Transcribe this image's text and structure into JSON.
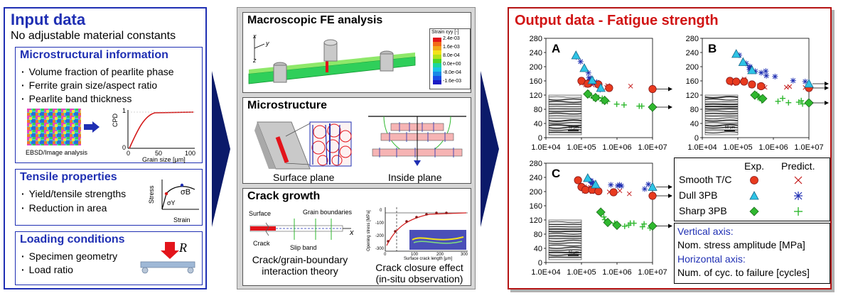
{
  "left": {
    "title": "Input data",
    "subtitle": "No adjustable material constants",
    "micro": {
      "heading": "Microstructural information",
      "items": [
        "Volume fraction of pearlite phase",
        "Ferrite grain size/aspect ratio",
        "Pearlite band thickness"
      ],
      "ebsd_caption": "EBSD/Image analysis",
      "cdf_ylabel": "CPD",
      "cdf_xlabel": "Grain size [μm]",
      "cdf_yticks": [
        "1",
        "0"
      ],
      "cdf_xticks": [
        "0",
        "50",
        "100"
      ]
    },
    "tensile": {
      "heading": "Tensile properties",
      "items": [
        "Yield/tensile strengths",
        "Reduction in area"
      ],
      "ylabel": "Stress",
      "xlabel": "Strain",
      "sigma_b": "σB",
      "sigma_y": "σY"
    },
    "loading": {
      "heading": "Loading conditions",
      "items": [
        "Specimen geometry",
        "Load ratio"
      ],
      "r_label": "R"
    }
  },
  "middle": {
    "fe": {
      "heading": "Macroscopic FE analysis",
      "legend_title": "Strain εyy [-]",
      "legend_values": [
        "2.4e-03",
        "1.6e-03",
        "8.0e-04",
        "0.0e+00",
        "-8.0e-04",
        "-1.6e-03"
      ],
      "axis_x": "x",
      "axis_y": "y",
      "axis_z": "z"
    },
    "micro": {
      "heading": "Microstructure",
      "surface_caption": "Surface plane",
      "inside_caption": "Inside plane"
    },
    "crack": {
      "heading": "Crack growth",
      "surface_label": "Surface",
      "grain_boundaries_label": "Grain boundaries",
      "crack_label": "Crack",
      "slip_band_label": "Slip band",
      "x_label": "x",
      "caption_left": "Crack/grain-boundary interaction theory",
      "caption_right": "Crack closure effect (in-situ observation)",
      "plot_ylabel": "Opening stress [MPa]",
      "plot_xlabel": "Surface crack length [μm]",
      "plot_yticks": [
        "0",
        "-100",
        "-200",
        "-300"
      ],
      "plot_xticks": [
        "0",
        "100",
        "200",
        "300"
      ]
    }
  },
  "right": {
    "title": "Output data - Fatigue strength",
    "panels": [
      "A",
      "B",
      "C"
    ],
    "yticks": [
      "280",
      "240",
      "200",
      "160",
      "120",
      "80",
      "40",
      "0"
    ],
    "xticks": [
      "1.0E+04",
      "1.0E+05",
      "1.0E+06",
      "1.0E+07"
    ],
    "scale_label": "50 μm",
    "legend": {
      "col_exp": "Exp.",
      "col_pred": "Predict.",
      "rows": [
        "Smooth T/C",
        "Dull 3PB",
        "Sharp 3PB"
      ]
    },
    "axes_note": {
      "vertical_title": "Vertical axis:",
      "vertical_text": "Nom. stress amplitude [MPa]",
      "horizontal_title": "Horizontal axis:",
      "horizontal_text": "Num. of cyc. to failure [cycles]"
    },
    "colors": {
      "smooth": "#e83a1e",
      "dull": "#2ec4e6",
      "sharp": "#2fb82f",
      "frame": "#b51414",
      "blue": "#1f2fb3"
    }
  },
  "chart_data": [
    {
      "type": "scatter",
      "panel": "A",
      "x_scale": "log",
      "xlim": [
        10000,
        10000000
      ],
      "ylim": [
        0,
        280
      ],
      "series": [
        {
          "name": "Smooth T/C",
          "kind": "exp",
          "points": [
            [
              100000,
              160
            ],
            [
              150000,
              152
            ],
            [
              300000,
              150
            ],
            [
              600000,
              140
            ],
            [
              10000000,
              137
            ]
          ]
        },
        {
          "name": "Dull 3PB",
          "kind": "exp",
          "points": [
            [
              70000,
              232
            ],
            [
              120000,
              196
            ],
            [
              200000,
              162
            ],
            [
              350000,
              140
            ]
          ]
        },
        {
          "name": "Sharp 3PB",
          "kind": "exp",
          "points": [
            [
              150000,
              123
            ],
            [
              250000,
              113
            ],
            [
              450000,
              105
            ],
            [
              10000000,
              86
            ]
          ]
        }
      ]
    },
    {
      "type": "scatter",
      "panel": "B",
      "x_scale": "log",
      "xlim": [
        10000,
        10000000
      ],
      "ylim": [
        0,
        280
      ],
      "series": [
        {
          "name": "Smooth T/C",
          "kind": "exp",
          "points": [
            [
              60000,
              160
            ],
            [
              90000,
              158
            ],
            [
              150000,
              158
            ],
            [
              250000,
              150
            ],
            [
              450000,
              145
            ],
            [
              10000000,
              140
            ]
          ]
        },
        {
          "name": "Dull 3PB",
          "kind": "exp",
          "points": [
            [
              90000,
              236
            ],
            [
              140000,
              213
            ],
            [
              250000,
              190
            ],
            [
              10000000,
              152
            ]
          ]
        },
        {
          "name": "Sharp 3PB",
          "kind": "exp",
          "points": [
            [
              300000,
              120
            ],
            [
              500000,
              110
            ],
            [
              10000000,
              98
            ]
          ]
        }
      ]
    },
    {
      "type": "scatter",
      "panel": "C",
      "x_scale": "log",
      "xlim": [
        10000,
        10000000
      ],
      "ylim": [
        0,
        280
      ],
      "series": [
        {
          "name": "Smooth T/C",
          "kind": "exp",
          "points": [
            [
              80000,
              232
            ],
            [
              100000,
              213
            ],
            [
              130000,
              205
            ],
            [
              200000,
              205
            ],
            [
              300000,
              201
            ],
            [
              800000,
              198
            ],
            [
              10000000,
              188
            ]
          ]
        },
        {
          "name": "Dull 3PB",
          "kind": "exp",
          "points": [
            [
              150000,
              238
            ],
            [
              250000,
              220
            ],
            [
              10000000,
              213
            ]
          ]
        },
        {
          "name": "Sharp 3PB",
          "kind": "exp",
          "points": [
            [
              350000,
              142
            ],
            [
              550000,
              113
            ],
            [
              1000000,
              105
            ],
            [
              10000000,
              103
            ]
          ]
        }
      ]
    }
  ]
}
